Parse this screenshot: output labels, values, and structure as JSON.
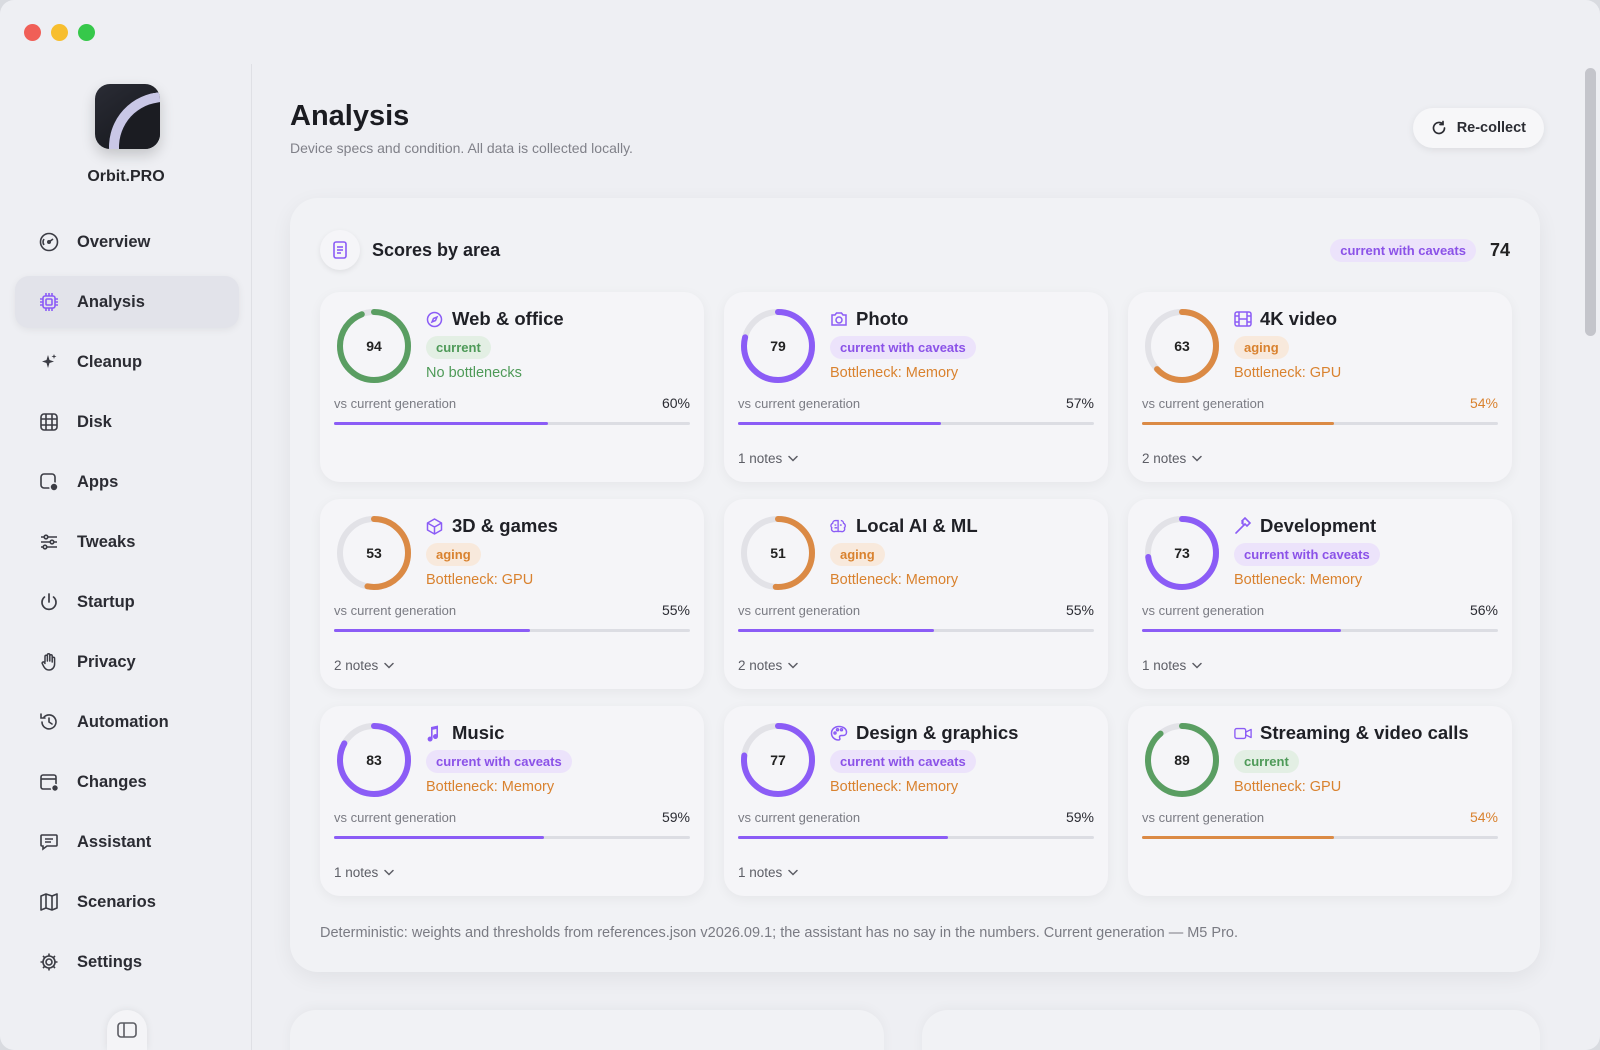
{
  "app": {
    "name": "Orbit.PRO",
    "sidebar": [
      {
        "label": "Overview",
        "icon": "gauge-icon",
        "active": false
      },
      {
        "label": "Analysis",
        "icon": "chip-icon",
        "active": true
      },
      {
        "label": "Cleanup",
        "icon": "sparkles-icon",
        "active": false
      },
      {
        "label": "Disk",
        "icon": "disk-grid-icon",
        "active": false
      },
      {
        "label": "Apps",
        "icon": "apps-icon",
        "active": false
      },
      {
        "label": "Tweaks",
        "icon": "sliders-icon",
        "active": false
      },
      {
        "label": "Startup",
        "icon": "power-icon",
        "active": false
      },
      {
        "label": "Privacy",
        "icon": "hand-icon",
        "active": false
      },
      {
        "label": "Automation",
        "icon": "history-icon",
        "active": false
      },
      {
        "label": "Changes",
        "icon": "calendar-icon",
        "active": false
      },
      {
        "label": "Assistant",
        "icon": "chat-icon",
        "active": false
      },
      {
        "label": "Scenarios",
        "icon": "map-icon",
        "active": false
      },
      {
        "label": "Settings",
        "icon": "gear-icon",
        "active": false
      }
    ]
  },
  "page": {
    "title": "Analysis",
    "subtitle": "Device specs and condition. All data is collected locally.",
    "recollect_label": "Re-collect"
  },
  "scores": {
    "title": "Scores by area",
    "overall_badge": "current with caveats",
    "overall_score": "74",
    "vs_label": "vs current generation",
    "footnote": "Deterministic: weights and thresholds from references.json v2026.09.1; the assistant has no say in the numbers. Current generation — M5 Pro.",
    "cards": [
      {
        "title": "Web & office",
        "icon": "compass-icon",
        "score": 94,
        "status": "current",
        "tone": "green",
        "bottleneck": "No bottlenecks",
        "vs": 60,
        "vs_label": "60%",
        "notes": ""
      },
      {
        "title": "Photo",
        "icon": "camera-icon",
        "score": 79,
        "status": "current with caveats",
        "tone": "purple",
        "bottleneck": "Bottleneck: Memory",
        "vs": 57,
        "vs_label": "57%",
        "notes": "1 notes"
      },
      {
        "title": "4K video",
        "icon": "film-icon",
        "score": 63,
        "status": "aging",
        "tone": "orange",
        "bottleneck": "Bottleneck: GPU",
        "vs": 54,
        "vs_label": "54%",
        "notes": "2 notes"
      },
      {
        "title": "3D & games",
        "icon": "cube-icon",
        "score": 53,
        "status": "aging",
        "tone": "orange",
        "bottleneck": "Bottleneck: GPU",
        "vs": 55,
        "vs_label": "55%",
        "notes": "2 notes"
      },
      {
        "title": "Local AI & ML",
        "icon": "brain-icon",
        "score": 51,
        "status": "aging",
        "tone": "orange",
        "bottleneck": "Bottleneck: Memory",
        "vs": 55,
        "vs_label": "55%",
        "notes": "2 notes"
      },
      {
        "title": "Development",
        "icon": "hammer-icon",
        "score": 73,
        "status": "current with caveats",
        "tone": "purple",
        "bottleneck": "Bottleneck: Memory",
        "vs": 56,
        "vs_label": "56%",
        "notes": "1 notes"
      },
      {
        "title": "Music",
        "icon": "music-note-icon",
        "score": 83,
        "status": "current with caveats",
        "tone": "purple",
        "bottleneck": "Bottleneck: Memory",
        "vs": 59,
        "vs_label": "59%",
        "notes": "1 notes"
      },
      {
        "title": "Design & graphics",
        "icon": "palette-icon",
        "score": 77,
        "status": "current with caveats",
        "tone": "purple",
        "bottleneck": "Bottleneck: Memory",
        "vs": 59,
        "vs_label": "59%",
        "notes": "1 notes"
      },
      {
        "title": "Streaming & video calls",
        "icon": "video-camera-icon",
        "score": 89,
        "status": "current",
        "tone": "green",
        "bottleneck": "Bottleneck: GPU",
        "vs": 54,
        "vs_label": "54%",
        "notes": ""
      }
    ]
  },
  "colors": {
    "accent": "#8b5cf6",
    "green": "#5a9e62",
    "orange": "#db8a45",
    "track": "#e2e2e7"
  }
}
